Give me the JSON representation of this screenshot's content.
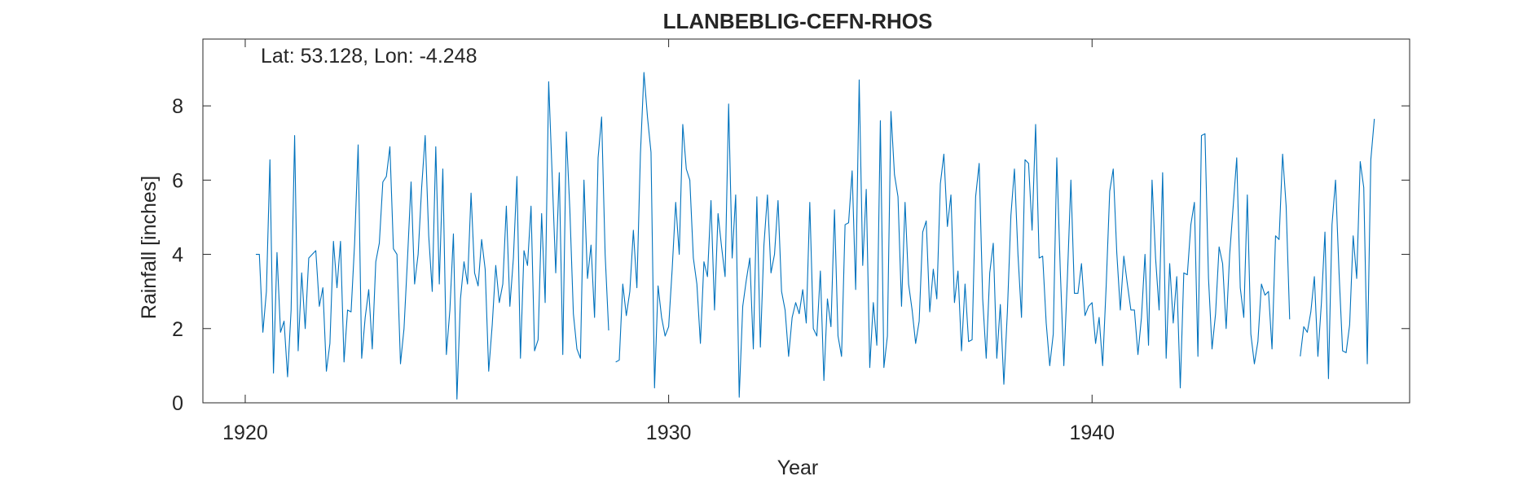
{
  "chart_data": {
    "type": "line",
    "title": "LLANBEBLIG-CEFN-RHOS",
    "annotation": "Lat: 53.128, Lon: -4.248",
    "xlabel": "Year",
    "ylabel": "Rainfall [inches]",
    "xlim": [
      1919.0,
      1947.5
    ],
    "ylim": [
      0,
      9.8
    ],
    "xticks": [
      1920,
      1930,
      1940
    ],
    "xtick_labels": [
      "1920",
      "1930",
      "1940"
    ],
    "yticks": [
      0,
      2,
      4,
      6,
      8
    ],
    "ytick_labels": [
      "0",
      "2",
      "4",
      "6",
      "8"
    ],
    "grid": false,
    "line_color": "#0072BD",
    "series": [
      {
        "name": "",
        "start": 1920.25,
        "step": 0.08333333,
        "values": [
          4.0,
          4.0,
          1.9,
          3.0,
          6.55,
          0.8,
          4.05,
          1.9,
          2.2,
          0.7,
          2.5,
          7.2,
          1.4,
          3.5,
          2.0,
          3.9,
          4.0,
          4.1,
          2.6,
          3.1,
          0.85,
          1.6,
          4.35,
          3.1,
          4.35,
          1.1,
          2.5,
          2.45,
          4.3,
          6.95,
          1.2,
          2.3,
          3.05,
          1.45,
          3.8,
          4.3,
          5.95,
          6.1,
          6.9,
          4.15,
          4.0,
          1.05,
          2.0,
          3.9,
          5.95,
          3.2,
          4.0,
          5.8,
          7.2,
          4.5,
          3.0,
          6.9,
          3.2,
          6.3,
          1.3,
          2.5,
          4.55,
          0.1,
          2.8,
          3.8,
          3.2,
          5.65,
          3.5,
          3.15,
          4.4,
          3.6,
          0.85,
          2.1,
          3.7,
          2.7,
          3.2,
          5.3,
          2.6,
          3.9,
          6.1,
          1.2,
          4.1,
          3.7,
          5.3,
          1.4,
          1.7,
          5.1,
          2.7,
          8.65,
          6.1,
          3.5,
          6.2,
          1.3,
          7.3,
          5.2,
          2.4,
          1.45,
          1.2,
          6.0,
          3.35,
          4.25,
          2.3,
          6.6,
          7.7,
          4.0,
          1.95,
          null,
          1.1,
          1.15,
          3.2,
          2.35,
          3.0,
          4.65,
          3.1,
          6.7,
          8.9,
          7.7,
          6.75,
          0.4,
          3.15,
          2.3,
          1.8,
          2.05,
          3.6,
          5.4,
          4.0,
          7.5,
          6.3,
          6.0,
          3.9,
          3.2,
          1.6,
          3.8,
          3.4,
          5.45,
          2.5,
          5.1,
          4.2,
          3.4,
          8.05,
          3.9,
          5.6,
          0.15,
          2.6,
          3.3,
          3.9,
          1.45,
          5.55,
          1.5,
          4.25,
          5.6,
          3.5,
          4.0,
          5.45,
          3.0,
          2.5,
          1.25,
          2.3,
          2.7,
          2.4,
          3.05,
          2.15,
          5.4,
          2.0,
          1.8,
          3.55,
          0.6,
          2.8,
          2.05,
          5.2,
          1.8,
          1.25,
          4.8,
          4.85,
          6.25,
          3.05,
          8.7,
          3.7,
          5.75,
          0.95,
          2.7,
          1.55,
          7.6,
          0.95,
          1.8,
          7.85,
          6.15,
          5.55,
          2.6,
          5.4,
          3.2,
          2.5,
          1.6,
          2.2,
          4.6,
          4.9,
          2.45,
          3.6,
          2.8,
          5.9,
          6.7,
          4.75,
          5.6,
          2.7,
          3.55,
          1.4,
          3.2,
          1.65,
          1.7,
          5.55,
          6.45,
          2.8,
          1.2,
          3.5,
          4.3,
          1.2,
          2.65,
          0.5,
          2.45,
          5.05,
          6.3,
          4.0,
          2.3,
          6.55,
          6.45,
          4.65,
          7.5,
          3.9,
          3.95,
          2.15,
          1.0,
          1.85,
          6.6,
          3.55,
          1.0,
          3.35,
          6.0,
          2.95,
          2.95,
          3.75,
          2.35,
          2.6,
          2.7,
          1.6,
          2.3,
          1.0,
          3.15,
          5.7,
          6.3,
          4.05,
          2.5,
          3.95,
          3.2,
          2.5,
          2.5,
          1.3,
          2.3,
          4.0,
          1.55,
          6.0,
          3.9,
          2.5,
          6.2,
          1.2,
          3.75,
          2.15,
          3.4,
          0.4,
          3.5,
          3.45,
          4.8,
          5.4,
          1.25,
          7.2,
          7.25,
          3.35,
          1.45,
          2.4,
          4.2,
          3.75,
          2.0,
          4.0,
          5.3,
          6.6,
          3.1,
          2.3,
          5.6,
          1.85,
          1.05,
          1.65,
          3.2,
          2.9,
          3.0,
          1.45,
          4.5,
          4.4,
          6.7,
          5.3,
          2.25,
          null,
          null,
          1.25,
          2.05,
          1.9,
          2.45,
          3.4,
          1.25,
          2.7,
          4.6,
          0.65,
          4.8,
          6.0,
          3.5,
          1.4,
          1.35,
          2.1,
          4.5,
          3.35,
          6.5,
          5.8,
          1.05,
          6.55,
          7.65
        ]
      }
    ]
  }
}
